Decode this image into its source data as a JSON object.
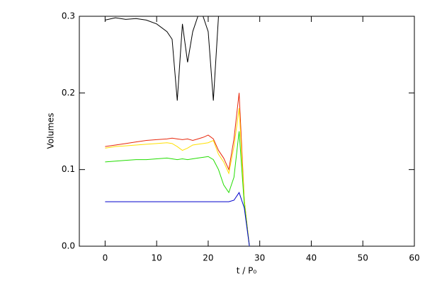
{
  "chart_data": {
    "type": "line",
    "xlabel": "t / P₀",
    "ylabel": "Volumes",
    "x": [
      0,
      2,
      4,
      6,
      8,
      10,
      12,
      13,
      14,
      15,
      16,
      17,
      18,
      19,
      20,
      21,
      22,
      23,
      24,
      25,
      26,
      27,
      28
    ],
    "series": [
      {
        "color": "#000000",
        "values": [
          0.295,
          0.298,
          0.296,
          0.297,
          0.295,
          0.29,
          0.28,
          0.27,
          0.19,
          0.29,
          0.24,
          0.28,
          0.3,
          0.3,
          0.28,
          0.19,
          0.3,
          0.3,
          0.3,
          0.3,
          0.3,
          0.3,
          null
        ]
      },
      {
        "color": "#e8280c",
        "values": [
          0.13,
          0.132,
          0.134,
          0.136,
          0.138,
          0.139,
          0.14,
          0.141,
          0.14,
          0.139,
          0.14,
          0.138,
          0.14,
          0.142,
          0.145,
          0.14,
          0.125,
          0.115,
          0.1,
          0.14,
          0.2,
          0.06,
          0.0
        ]
      },
      {
        "color": "#ffe000",
        "values": [
          0.128,
          0.13,
          0.131,
          0.132,
          0.133,
          0.134,
          0.135,
          0.134,
          0.13,
          0.125,
          0.128,
          0.132,
          0.133,
          0.134,
          0.135,
          0.138,
          0.12,
          0.11,
          0.095,
          0.13,
          0.18,
          0.06,
          0.0
        ]
      },
      {
        "color": "#22dd00",
        "values": [
          0.11,
          0.111,
          0.112,
          0.113,
          0.113,
          0.114,
          0.115,
          0.114,
          0.113,
          0.114,
          0.113,
          0.114,
          0.115,
          0.116,
          0.117,
          0.113,
          0.1,
          0.08,
          0.07,
          0.09,
          0.15,
          0.055,
          0.0
        ]
      },
      {
        "color": "#0000cc",
        "values": [
          0.058,
          0.058,
          0.058,
          0.058,
          0.058,
          0.058,
          0.058,
          0.058,
          0.058,
          0.058,
          0.058,
          0.058,
          0.058,
          0.058,
          0.058,
          0.058,
          0.058,
          0.058,
          0.058,
          0.06,
          0.07,
          0.05,
          0.0
        ]
      }
    ],
    "xlim": [
      -5,
      60
    ],
    "xticks": [
      0,
      10,
      20,
      30,
      40,
      50,
      60
    ],
    "ylim": [
      0,
      0.3
    ],
    "yticks": [
      {
        "value": 0,
        "label": "0.0"
      },
      0.1,
      0.2,
      0.3
    ]
  }
}
